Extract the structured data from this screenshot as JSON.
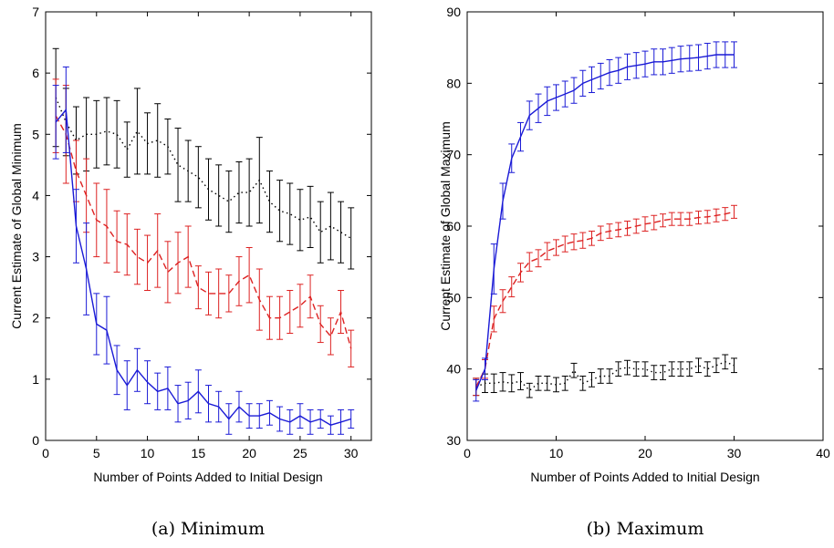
{
  "chart_data": [
    {
      "type": "line",
      "caption": "(a) Minimum",
      "xlabel": "Number of Points Added to Initial Design",
      "ylabel": "Current Estimate of Global Minimum",
      "xlim": [
        0,
        32
      ],
      "ylim": [
        0,
        7
      ],
      "xticks": [
        0,
        5,
        10,
        15,
        20,
        25,
        30
      ],
      "yticks": [
        0,
        1,
        2,
        3,
        4,
        5,
        6,
        7
      ],
      "grid": false,
      "series": [
        {
          "color": "#000000",
          "style": "dotted",
          "x": [
            1,
            2,
            3,
            4,
            5,
            6,
            7,
            8,
            9,
            10,
            11,
            12,
            13,
            14,
            15,
            16,
            17,
            18,
            19,
            20,
            21,
            22,
            23,
            24,
            25,
            26,
            27,
            28,
            29,
            30
          ],
          "y": [
            5.6,
            5.2,
            4.9,
            5.0,
            5.0,
            5.05,
            5.0,
            4.75,
            5.05,
            4.85,
            4.9,
            4.8,
            4.5,
            4.4,
            4.3,
            4.1,
            4.0,
            3.9,
            4.05,
            4.05,
            4.25,
            3.9,
            3.75,
            3.7,
            3.6,
            3.65,
            3.4,
            3.5,
            3.4,
            3.3
          ],
          "err": [
            0.8,
            0.55,
            0.55,
            0.6,
            0.55,
            0.55,
            0.55,
            0.45,
            0.7,
            0.5,
            0.6,
            0.45,
            0.6,
            0.5,
            0.5,
            0.5,
            0.5,
            0.5,
            0.5,
            0.55,
            0.7,
            0.5,
            0.5,
            0.5,
            0.5,
            0.5,
            0.5,
            0.55,
            0.5,
            0.5
          ]
        },
        {
          "color": "#dd2222",
          "style": "dashed",
          "x": [
            1,
            2,
            3,
            4,
            5,
            6,
            7,
            8,
            9,
            10,
            11,
            12,
            13,
            14,
            15,
            16,
            17,
            18,
            19,
            20,
            21,
            22,
            23,
            24,
            25,
            26,
            27,
            28,
            29,
            30
          ],
          "y": [
            5.3,
            5.0,
            4.4,
            4.0,
            3.6,
            3.5,
            3.25,
            3.2,
            3.0,
            2.9,
            3.1,
            2.75,
            2.9,
            3.0,
            2.5,
            2.4,
            2.4,
            2.4,
            2.6,
            2.7,
            2.3,
            2.0,
            2.0,
            2.1,
            2.2,
            2.35,
            1.9,
            1.7,
            2.1,
            1.5
          ],
          "err": [
            0.6,
            0.8,
            0.5,
            0.6,
            0.6,
            0.6,
            0.5,
            0.5,
            0.45,
            0.45,
            0.6,
            0.5,
            0.5,
            0.5,
            0.35,
            0.35,
            0.4,
            0.3,
            0.4,
            0.45,
            0.5,
            0.35,
            0.35,
            0.35,
            0.35,
            0.35,
            0.3,
            0.3,
            0.35,
            0.3
          ]
        },
        {
          "color": "#1a1ad6",
          "style": "solid",
          "x": [
            1,
            2,
            3,
            4,
            5,
            6,
            7,
            8,
            9,
            10,
            11,
            12,
            13,
            14,
            15,
            16,
            17,
            18,
            19,
            20,
            21,
            22,
            23,
            24,
            25,
            26,
            27,
            28,
            29,
            30
          ],
          "y": [
            5.2,
            5.4,
            3.5,
            2.8,
            1.9,
            1.8,
            1.15,
            0.9,
            1.15,
            0.95,
            0.8,
            0.85,
            0.6,
            0.65,
            0.8,
            0.6,
            0.55,
            0.35,
            0.55,
            0.4,
            0.4,
            0.45,
            0.35,
            0.3,
            0.4,
            0.3,
            0.35,
            0.25,
            0.3,
            0.35
          ],
          "err": [
            0.6,
            0.7,
            0.6,
            0.75,
            0.5,
            0.55,
            0.4,
            0.4,
            0.35,
            0.35,
            0.3,
            0.35,
            0.3,
            0.3,
            0.35,
            0.3,
            0.25,
            0.25,
            0.25,
            0.2,
            0.2,
            0.2,
            0.2,
            0.2,
            0.2,
            0.2,
            0.15,
            0.15,
            0.2,
            0.15
          ]
        }
      ]
    },
    {
      "type": "line",
      "caption": "(b) Maximum",
      "xlabel": "Number of Points Added to Initial Design",
      "ylabel": "Current Estimate of Global Maximum",
      "xlim": [
        0,
        40
      ],
      "ylim": [
        30,
        90
      ],
      "xticks": [
        0,
        10,
        20,
        30,
        40
      ],
      "yticks": [
        30,
        40,
        50,
        60,
        70,
        80,
        90
      ],
      "grid": false,
      "series": [
        {
          "color": "#000000",
          "style": "dotted",
          "x": [
            1,
            2,
            3,
            4,
            5,
            6,
            7,
            8,
            9,
            10,
            11,
            12,
            13,
            14,
            15,
            16,
            17,
            18,
            19,
            20,
            21,
            22,
            23,
            24,
            25,
            26,
            27,
            28,
            29,
            30
          ],
          "y": [
            37.5,
            38.0,
            38.0,
            38.2,
            38.0,
            38.3,
            37.0,
            38.0,
            38.0,
            37.8,
            38.0,
            39.8,
            38.0,
            38.5,
            39.0,
            39.0,
            40.0,
            40.2,
            40.0,
            40.0,
            39.5,
            39.5,
            40.0,
            40.0,
            40.0,
            40.5,
            40.0,
            40.5,
            41.0,
            40.5
          ],
          "err": [
            1.2,
            1.3,
            1.3,
            1.3,
            1.2,
            1.2,
            1.0,
            1.0,
            1.0,
            1.0,
            1.0,
            1.0,
            1.0,
            1.0,
            1.0,
            1.0,
            1.0,
            1.0,
            1.0,
            1.0,
            1.0,
            1.0,
            1.0,
            1.0,
            1.0,
            1.0,
            1.0,
            1.0,
            1.0,
            1.0
          ]
        },
        {
          "color": "#dd2222",
          "style": "dashed",
          "x": [
            1,
            2,
            3,
            4,
            5,
            6,
            7,
            8,
            9,
            10,
            11,
            12,
            13,
            14,
            15,
            16,
            17,
            18,
            19,
            20,
            21,
            22,
            23,
            24,
            25,
            26,
            27,
            28,
            29,
            30
          ],
          "y": [
            37.5,
            40.0,
            47.0,
            49.5,
            51.5,
            53.5,
            55.0,
            55.5,
            56.5,
            57.0,
            57.5,
            57.8,
            58.0,
            58.3,
            59.0,
            59.3,
            59.5,
            59.7,
            60.0,
            60.3,
            60.5,
            60.8,
            61.0,
            61.0,
            61.0,
            61.2,
            61.3,
            61.5,
            61.7,
            62.0
          ],
          "err": [
            1.2,
            1.3,
            1.8,
            1.6,
            1.4,
            1.3,
            1.3,
            1.2,
            1.2,
            1.1,
            1.1,
            1.1,
            1.1,
            1.0,
            1.0,
            1.0,
            1.0,
            1.0,
            1.0,
            1.0,
            1.0,
            0.9,
            0.9,
            0.9,
            0.9,
            0.9,
            0.9,
            0.9,
            0.9,
            0.9
          ]
        },
        {
          "color": "#1a1ad6",
          "style": "solid",
          "x": [
            1,
            2,
            3,
            4,
            5,
            6,
            7,
            8,
            9,
            10,
            11,
            12,
            13,
            14,
            15,
            16,
            17,
            18,
            19,
            20,
            21,
            22,
            23,
            24,
            25,
            26,
            27,
            28,
            29,
            30
          ],
          "y": [
            37.0,
            40.0,
            54.0,
            63.5,
            69.5,
            72.5,
            75.5,
            76.5,
            77.5,
            78.0,
            78.5,
            79.0,
            80.0,
            80.5,
            81.0,
            81.5,
            81.8,
            82.3,
            82.5,
            82.7,
            83.0,
            83.0,
            83.2,
            83.4,
            83.5,
            83.6,
            83.8,
            84.0,
            84.0,
            84.0
          ],
          "err": [
            1.5,
            1.5,
            3.5,
            2.5,
            2.0,
            2.0,
            2.0,
            2.0,
            2.0,
            1.8,
            1.8,
            1.8,
            1.8,
            1.8,
            1.8,
            1.8,
            1.8,
            1.8,
            1.8,
            1.8,
            1.8,
            1.8,
            1.8,
            1.8,
            1.8,
            1.8,
            1.8,
            1.8,
            1.8,
            1.8
          ]
        }
      ]
    }
  ]
}
